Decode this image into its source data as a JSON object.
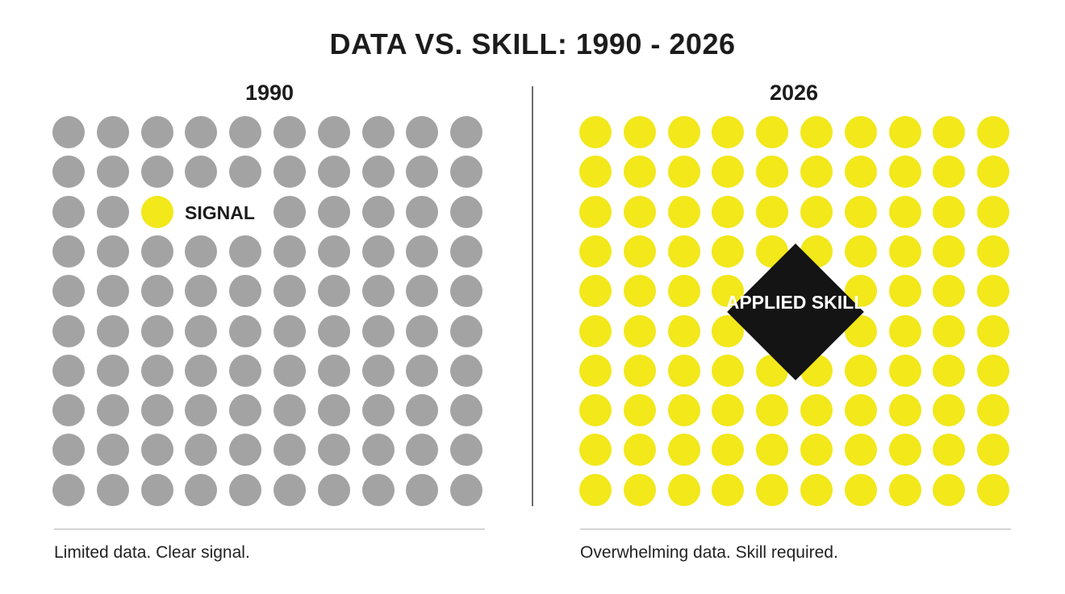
{
  "title": "DATA VS. SKILL: 1990 - 2026",
  "panels": {
    "left": {
      "year": "1990",
      "signal_label": "SIGNAL",
      "caption": "Limited data. Clear signal.",
      "dot_color": "#a3a3a3",
      "signal_color": "#f2e81a",
      "rows": 10,
      "cols": 10,
      "signal_cell": {
        "row": 2,
        "col": 2
      }
    },
    "right": {
      "year": "2026",
      "badge_label": "APPLIED SKILL",
      "caption": "Overwhelming data. Skill required.",
      "dot_color": "#f2e81a",
      "badge_color": "#141414",
      "rows": 10,
      "cols": 10
    }
  }
}
